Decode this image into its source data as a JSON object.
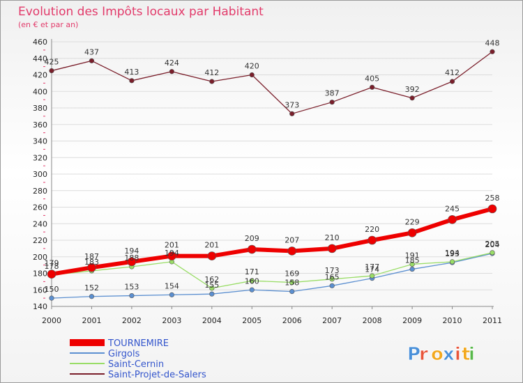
{
  "chart_data": {
    "type": "line",
    "title": "Evolution des Impôts locaux par Habitant",
    "subtitle": "(en € et par an)",
    "x": [
      "2000",
      "2001",
      "2002",
      "2003",
      "2004",
      "2005",
      "2006",
      "2007",
      "2008",
      "2009",
      "2010",
      "2011"
    ],
    "ylim": [
      140,
      460
    ],
    "yticks": [
      140,
      160,
      180,
      200,
      220,
      240,
      260,
      280,
      300,
      320,
      340,
      360,
      380,
      400,
      420,
      440,
      460
    ],
    "grid": "horizontal",
    "legend_position": "bottom-left",
    "series": [
      {
        "name": "TOURNEMIRE",
        "color": "#ee0000",
        "values": [
          179,
          187,
          194,
          201,
          201,
          209,
          207,
          210,
          220,
          229,
          245,
          258
        ]
      },
      {
        "name": "Girgols",
        "color": "#5b8fd0",
        "values": [
          150,
          152,
          153,
          154,
          155,
          160,
          158,
          165,
          174,
          185,
          193,
          204
        ]
      },
      {
        "name": "Saint-Cernin",
        "color": "#99dd66",
        "values": [
          178,
          183,
          188,
          194,
          162,
          171,
          169,
          173,
          177,
          191,
          194,
          205
        ]
      },
      {
        "name": "Saint-Projet-de-Salers",
        "color": "#7a1e2a",
        "values": [
          425,
          437,
          413,
          424,
          412,
          420,
          373,
          387,
          405,
          392,
          412,
          448
        ]
      }
    ]
  },
  "watermark": {
    "text": "Proxiti",
    "colors": [
      "#4a90d9",
      "#e8553a",
      "#f2a81d",
      "#4a90d9",
      "#e8553a",
      "#f2a81d",
      "#58b84a"
    ]
  }
}
